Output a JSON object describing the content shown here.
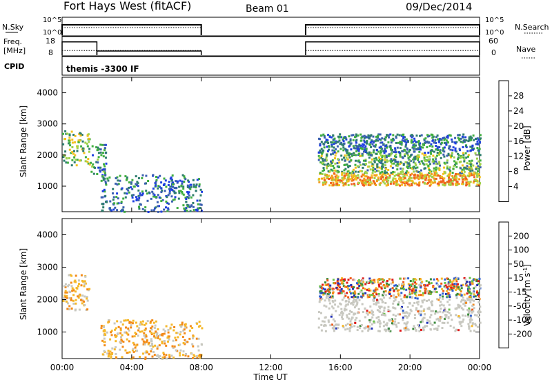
{
  "header": {
    "title": "Fort Hays West (fitACF)",
    "beam": "Beam 01",
    "date": "09/Dec/2014"
  },
  "labels": {
    "nsky": "N.Sky",
    "nsearch": "N.Search",
    "freq": "Freq.",
    "freq_unit": "[MHz]",
    "nave": "Nave",
    "cpid": "CPID",
    "cpid_value": "themis -3300 IF",
    "exp_low": "10^0",
    "exp_high": "10^5",
    "freq_low": "8",
    "freq_high": "18",
    "nave_low": "0",
    "nave_high": "60"
  },
  "colors": {
    "power": [
      "#1f3fe0",
      "#3a5fb0",
      "#2f7d6e",
      "#3fae3f",
      "#9fd24a",
      "#f2c11f",
      "#f39a1a",
      "#f06020",
      "#e81818"
    ],
    "velocity": [
      "#1f2fb8",
      "#2f5fd0",
      "#3a8a3a",
      "#6cc24a",
      "#c8c8c0",
      "#f5b82a",
      "#f38a18",
      "#f05a18",
      "#e01818"
    ]
  },
  "chart_data": [
    {
      "type": "heatmap",
      "name": "power",
      "ylabel": "Slant Range [km]",
      "xlabel": "Time UT",
      "x_ticks": [
        "00:00",
        "04:00",
        "08:00",
        "12:00",
        "16:00",
        "20:00",
        "00:00"
      ],
      "y_ticks": [
        1000,
        2000,
        3000,
        4000
      ],
      "ylim": [
        180,
        4500
      ],
      "xlim_hours": [
        0,
        24
      ],
      "colorbar_label": "Power [dB]",
      "colorbar_ticks": [
        4,
        8,
        12,
        16,
        20,
        24,
        28
      ],
      "colorbar_range": [
        0,
        32
      ],
      "regions": [
        {
          "t": [
            0.0,
            1.6
          ],
          "r": [
            1700,
            2800
          ],
          "level": 14
        },
        {
          "t": [
            1.6,
            2.5
          ],
          "r": [
            1400,
            2400
          ],
          "level": 8
        },
        {
          "t": [
            2.2,
            8.0
          ],
          "r": [
            200,
            1400
          ],
          "level": 6
        },
        {
          "t": [
            14.7,
            24.0
          ],
          "r": [
            1050,
            1450
          ],
          "level": 22
        },
        {
          "t": [
            14.7,
            24.0
          ],
          "r": [
            1450,
            2100
          ],
          "level": 12
        },
        {
          "t": [
            14.7,
            24.0
          ],
          "r": [
            2100,
            2700
          ],
          "level": 6
        }
      ]
    },
    {
      "type": "heatmap",
      "name": "velocity",
      "ylabel": "Slant Range [km]",
      "xlabel": "Time UT",
      "x_ticks": [
        "00:00",
        "04:00",
        "08:00",
        "12:00",
        "16:00",
        "20:00",
        "00:00"
      ],
      "y_ticks": [
        1000,
        2000,
        3000,
        4000
      ],
      "ylim": [
        180,
        4500
      ],
      "colorbar_label": "Velocity [m s^-1]",
      "colorbar_ticks": [
        200,
        100,
        50,
        15,
        -15,
        -50,
        -100,
        -200
      ],
      "regions": [
        {
          "t": [
            0.0,
            1.6
          ],
          "r": [
            1700,
            2800
          ],
          "level": -30
        },
        {
          "t": [
            2.2,
            8.0
          ],
          "r": [
            200,
            1400
          ],
          "level": -60
        },
        {
          "t": [
            14.7,
            24.0
          ],
          "r": [
            1050,
            2100
          ],
          "level": 0
        },
        {
          "t": [
            14.7,
            24.0
          ],
          "r": [
            2100,
            2700
          ],
          "level": 80
        }
      ]
    },
    {
      "type": "line",
      "name": "nsky_nsearch",
      "segments_hours": [
        [
          0.0,
          8.0
        ],
        [
          14.0,
          24.0
        ]
      ]
    },
    {
      "type": "line",
      "name": "freq_nave",
      "freq_mhz": [
        {
          "t": [
            0.0,
            2.0
          ],
          "v": 16
        },
        {
          "t": [
            2.0,
            8.0
          ],
          "v": 10.5
        },
        {
          "t": [
            14.0,
            24.0
          ],
          "v": 16
        }
      ],
      "nave": [
        {
          "t": [
            0.0,
            8.0
          ],
          "v": 17
        },
        {
          "t": [
            14.0,
            24.0
          ],
          "v": 17
        }
      ]
    }
  ]
}
